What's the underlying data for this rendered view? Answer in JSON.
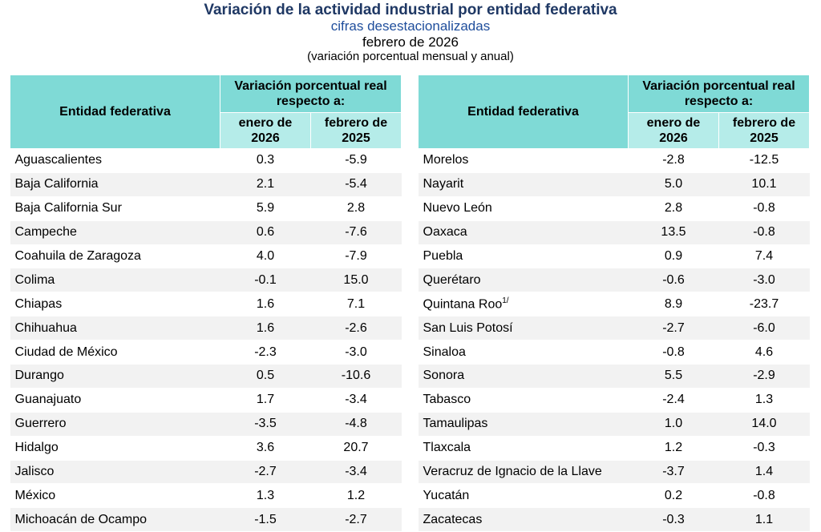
{
  "header": {
    "title": "Variación de la actividad industrial por entidad federativa",
    "subtitle": "cifras desestacionalizadas",
    "date": "febrero de 2026",
    "note": "(variación porcentual mensual y anual)"
  },
  "columns": {
    "entity": "Entidad federativa",
    "group": "Variación porcentual real respecto a:",
    "month": "enero de 2026",
    "year": "febrero de 2025"
  },
  "tables": [
    {
      "rows": [
        [
          "Aguascalientes",
          "0.3",
          "-5.9"
        ],
        [
          "Baja California",
          "2.1",
          "-5.4"
        ],
        [
          "Baja California Sur",
          "5.9",
          "2.8"
        ],
        [
          "Campeche",
          "0.6",
          "-7.6"
        ],
        [
          "Coahuila de Zaragoza",
          "4.0",
          "-7.9"
        ],
        [
          "Colima",
          "-0.1",
          "15.0"
        ],
        [
          "Chiapas",
          "1.6",
          "7.1"
        ],
        [
          "Chihuahua",
          "1.6",
          "-2.6"
        ],
        [
          "Ciudad de México",
          "-2.3",
          "-3.0"
        ],
        [
          "Durango",
          "0.5",
          "-10.6"
        ],
        [
          "Guanajuato",
          "1.7",
          "-3.4"
        ],
        [
          "Guerrero",
          "-3.5",
          "-4.8"
        ],
        [
          "Hidalgo",
          "3.6",
          "20.7"
        ],
        [
          "Jalisco",
          "-2.7",
          "-3.4"
        ],
        [
          "México",
          "1.3",
          "1.2"
        ],
        [
          "Michoacán de Ocampo",
          "-1.5",
          "-2.7"
        ]
      ]
    },
    {
      "rows": [
        [
          "Morelos",
          "-2.8",
          "-12.5"
        ],
        [
          "Nayarit",
          "5.0",
          "10.1"
        ],
        [
          "Nuevo León",
          "2.8",
          "-0.8"
        ],
        [
          "Oaxaca",
          "13.5",
          "-0.8"
        ],
        [
          "Puebla",
          "0.9",
          "7.4"
        ],
        [
          "Querétaro",
          "-0.6",
          "-3.0"
        ],
        [
          "Quintana Roo",
          "8.9",
          "-23.7"
        ],
        [
          "San Luis Potosí",
          "-2.7",
          "-6.0"
        ],
        [
          "Sinaloa",
          "-0.8",
          "4.6"
        ],
        [
          "Sonora",
          "5.5",
          "-2.9"
        ],
        [
          "Tabasco",
          "-2.4",
          "1.3"
        ],
        [
          "Tamaulipas",
          "1.0",
          "14.0"
        ],
        [
          "Tlaxcala",
          "1.2",
          "-0.3"
        ],
        [
          "Veracruz de Ignacio de la Llave",
          "-3.7",
          "1.4"
        ],
        [
          "Yucatán",
          "0.2",
          "-0.8"
        ],
        [
          "Zacatecas",
          "-0.3",
          "1.1"
        ]
      ],
      "footnote": {
        "row": 6,
        "mark": "1/"
      }
    }
  ]
}
